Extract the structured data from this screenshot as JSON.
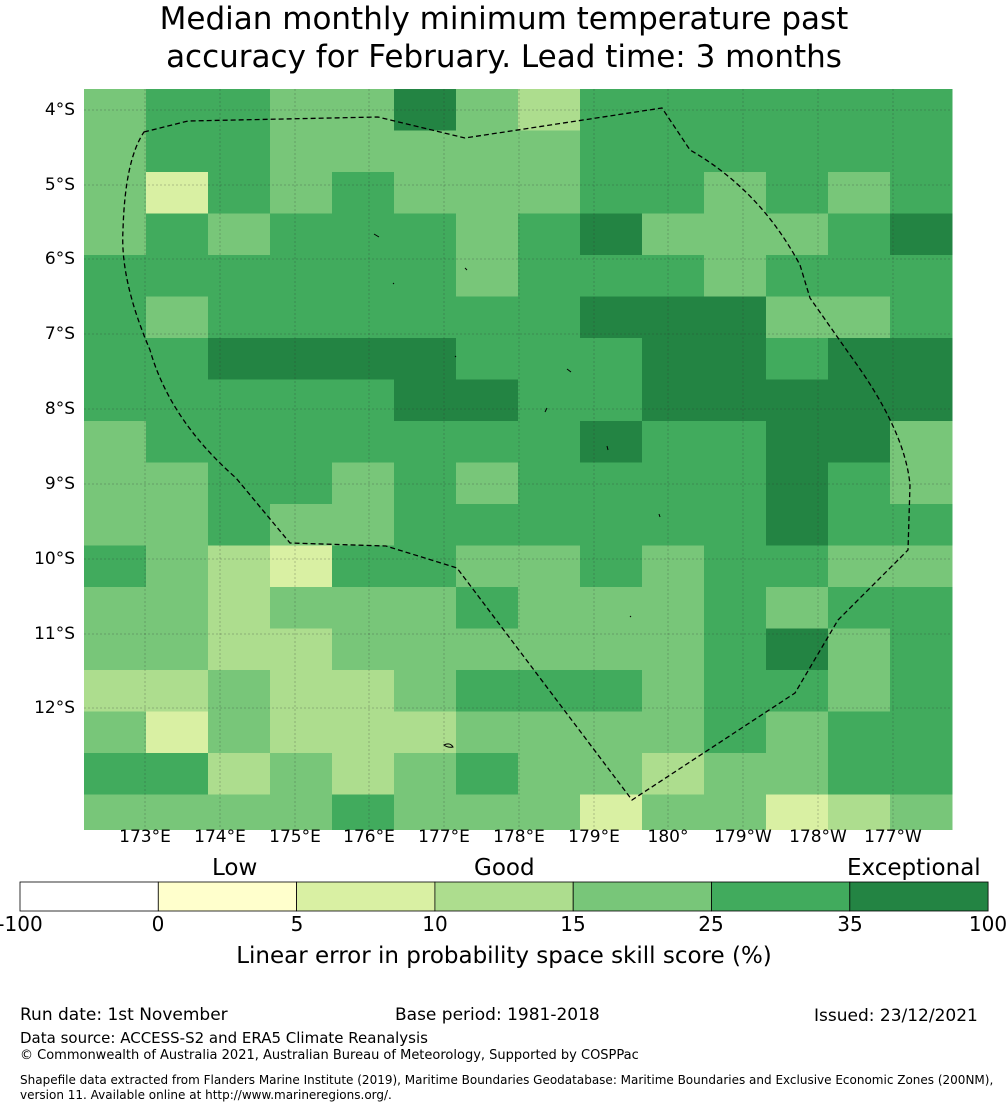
{
  "title": {
    "line1": "Median monthly minimum temperature past",
    "line2": "accuracy for February. Lead time: 3 months"
  },
  "map": {
    "lat_labels": [
      "4°S",
      "5°S",
      "6°S",
      "7°S",
      "8°S",
      "9°S",
      "10°S",
      "11°S",
      "12°S"
    ],
    "lon_labels": [
      "173°E",
      "174°E",
      "175°E",
      "176°E",
      "177°E",
      "178°E",
      "179°E",
      "180°",
      "179°W",
      "178°W",
      "177°W"
    ],
    "class_colors": {
      "0": "#ffffcc",
      "1": "#d9f0a3",
      "2": "#addd8e",
      "3": "#78c679",
      "4": "#41ab5d",
      "5": "#238443"
    },
    "grid": [
      [
        3,
        4,
        4,
        3,
        3,
        5,
        3,
        2,
        4,
        4,
        4,
        4,
        4,
        4
      ],
      [
        3,
        4,
        4,
        3,
        3,
        3,
        3,
        3,
        4,
        4,
        4,
        4,
        4,
        4
      ],
      [
        3,
        1,
        4,
        3,
        4,
        3,
        3,
        3,
        4,
        4,
        3,
        4,
        3,
        4
      ],
      [
        3,
        4,
        3,
        4,
        4,
        4,
        3,
        4,
        5,
        3,
        3,
        3,
        4,
        5
      ],
      [
        4,
        4,
        4,
        4,
        4,
        4,
        3,
        4,
        4,
        4,
        3,
        4,
        4,
        4
      ],
      [
        4,
        3,
        4,
        4,
        4,
        4,
        4,
        4,
        5,
        5,
        5,
        3,
        3,
        4
      ],
      [
        4,
        4,
        5,
        5,
        5,
        5,
        4,
        4,
        4,
        5,
        5,
        4,
        5,
        5
      ],
      [
        4,
        4,
        4,
        4,
        4,
        5,
        5,
        4,
        4,
        5,
        5,
        5,
        5,
        5
      ],
      [
        3,
        4,
        4,
        4,
        4,
        4,
        4,
        4,
        5,
        4,
        4,
        5,
        5,
        3
      ],
      [
        3,
        3,
        4,
        4,
        3,
        4,
        3,
        4,
        4,
        4,
        4,
        5,
        4,
        3
      ],
      [
        3,
        3,
        4,
        3,
        3,
        4,
        4,
        4,
        4,
        4,
        4,
        5,
        4,
        4
      ],
      [
        4,
        3,
        2,
        1,
        4,
        4,
        3,
        3,
        4,
        3,
        4,
        4,
        3,
        3
      ],
      [
        3,
        3,
        2,
        3,
        3,
        3,
        4,
        3,
        3,
        3,
        4,
        3,
        4,
        4
      ],
      [
        3,
        3,
        2,
        2,
        3,
        3,
        3,
        3,
        3,
        3,
        4,
        5,
        3,
        4
      ],
      [
        2,
        2,
        3,
        2,
        2,
        3,
        4,
        4,
        4,
        3,
        4,
        4,
        3,
        4
      ],
      [
        3,
        1,
        3,
        2,
        2,
        2,
        3,
        3,
        3,
        3,
        4,
        3,
        4,
        4
      ],
      [
        4,
        4,
        2,
        3,
        2,
        3,
        4,
        3,
        3,
        2,
        3,
        3,
        4,
        4
      ],
      [
        3,
        3,
        3,
        3,
        4,
        3,
        3,
        3,
        1,
        3,
        3,
        1,
        2,
        3
      ],
      [
        4,
        4,
        4,
        4,
        3,
        1,
        3,
        2,
        1,
        3,
        3,
        1,
        3,
        2
      ]
    ]
  },
  "colorbar": {
    "categories": [
      "Low",
      "Good",
      "Exceptional"
    ],
    "ticks": [
      "-100",
      "0",
      "5",
      "10",
      "15",
      "25",
      "35",
      "100"
    ],
    "colors": [
      "#ffffff",
      "#ffffcc",
      "#d9f0a3",
      "#addd8e",
      "#78c679",
      "#41ab5d",
      "#238443"
    ],
    "title": "Linear error in probability space skill score (%)"
  },
  "footer": {
    "run_date": "Run date: 1st November",
    "base_period": "Base period: 1981-2018",
    "issued": "Issued: 23/12/2021",
    "data_source": "Data source: ACCESS-S2 and ERA5 Climate Reanalysis",
    "copyright": "© Commonwealth of Australia 2021, Australian Bureau of Meteorology, Supported by COSPPac",
    "shapefile_line1": "Shapefile data extracted from Flanders Marine Institute (2019), Maritime Boundaries Geodatabase: Maritime Boundaries and Exclusive Economic Zones (200NM),",
    "shapefile_line2": "version 11. Available online at http://www.marineregions.org/."
  }
}
